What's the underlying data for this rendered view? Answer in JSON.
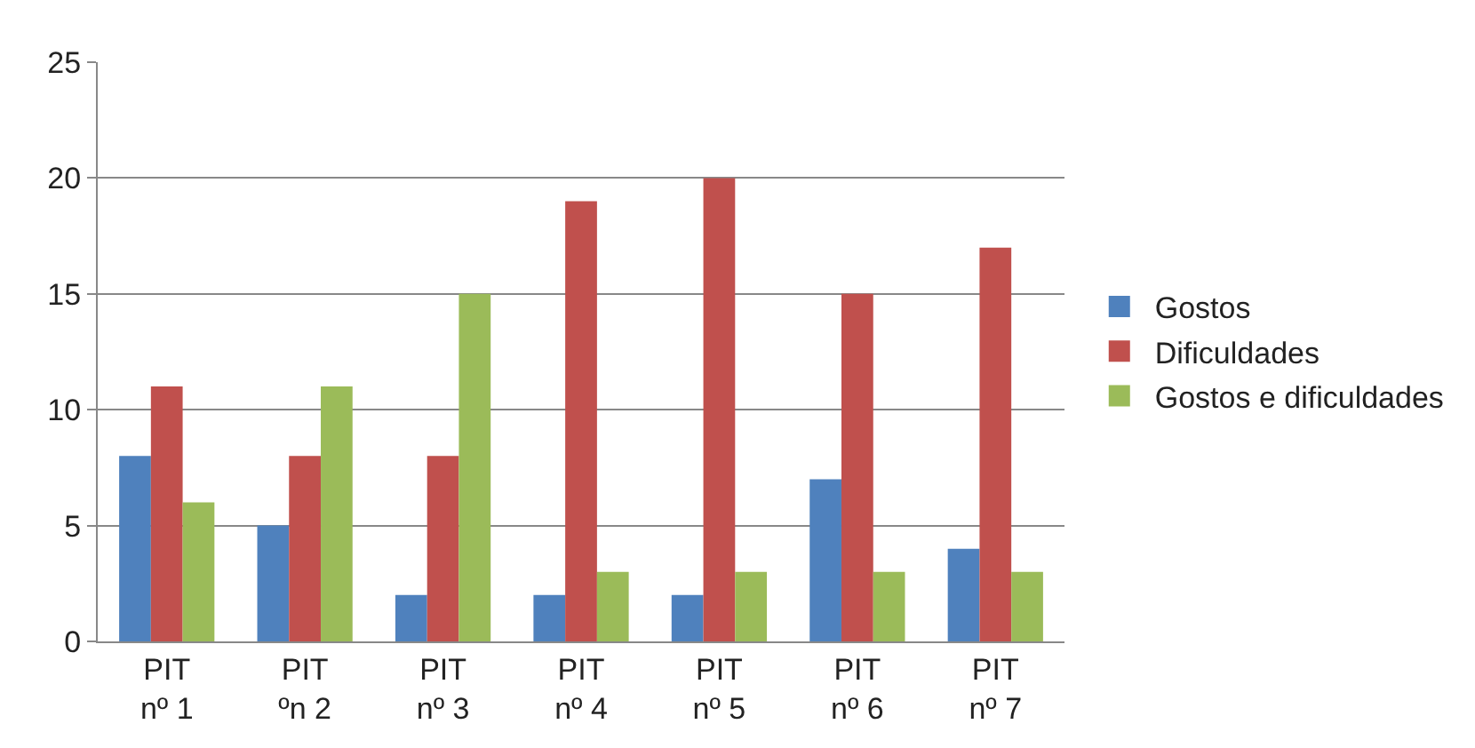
{
  "chart_data": {
    "type": "bar",
    "categories": [
      "PIT nº 1",
      "PIT ºn 2",
      "PIT nº 3",
      "PIT nº 4",
      "PIT nº 5",
      "PIT nº 6",
      "PIT nº 7"
    ],
    "series": [
      {
        "name": "Gostos",
        "color": "#4f81bd",
        "values": [
          8,
          5,
          2,
          2,
          2,
          7,
          4
        ]
      },
      {
        "name": "Dificuldades",
        "color": "#c0504d",
        "values": [
          11,
          8,
          8,
          19,
          20,
          15,
          17
        ]
      },
      {
        "name": "Gostos e dificuldades",
        "color": "#9bbb59",
        "values": [
          6,
          11,
          15,
          3,
          3,
          3,
          3
        ]
      }
    ],
    "ylim": [
      0,
      25
    ],
    "yticks": [
      0,
      5,
      10,
      15,
      20,
      25
    ],
    "grid": "y",
    "legend": "right"
  }
}
